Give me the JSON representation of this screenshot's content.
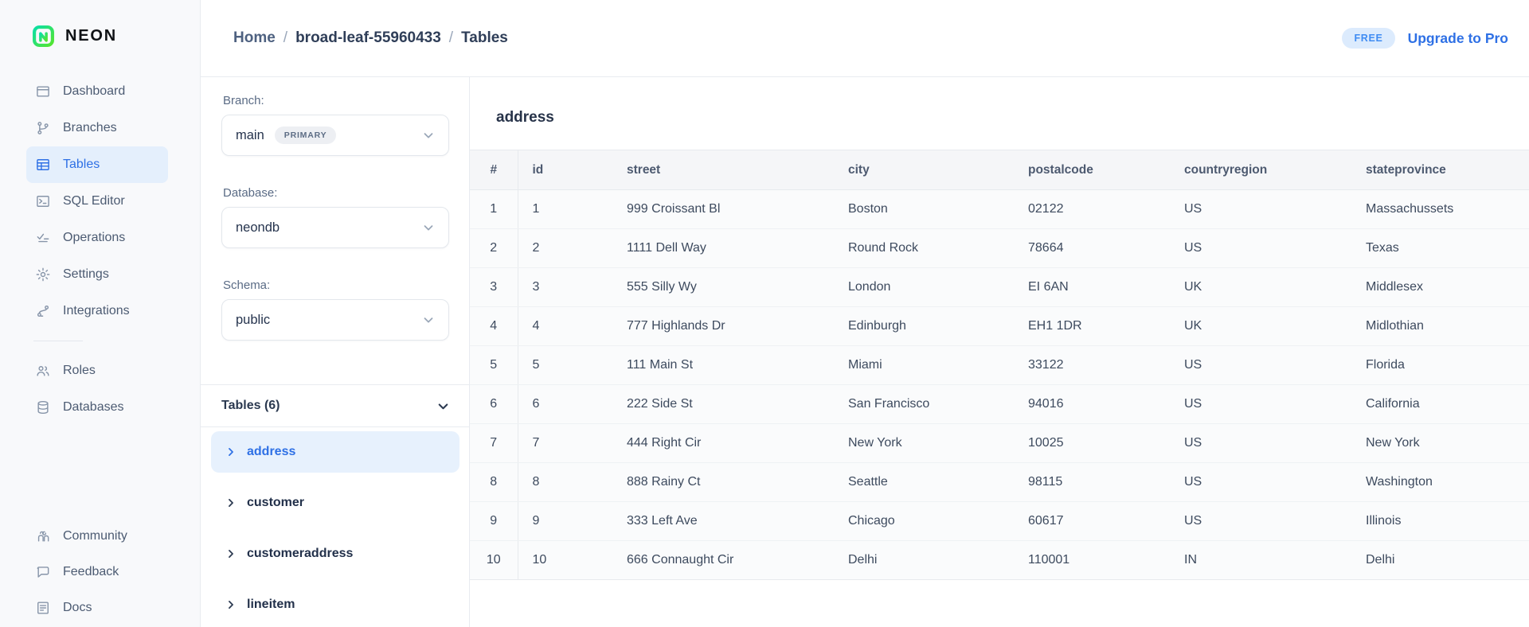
{
  "brand": {
    "name": "NEON"
  },
  "sidebar": {
    "items": [
      {
        "label": "Dashboard",
        "icon": "dashboard",
        "selected": false
      },
      {
        "label": "Branches",
        "icon": "branches",
        "selected": false
      },
      {
        "label": "Tables",
        "icon": "tables",
        "selected": true
      },
      {
        "label": "SQL Editor",
        "icon": "sql-editor",
        "selected": false
      },
      {
        "label": "Operations",
        "icon": "operations",
        "selected": false
      },
      {
        "label": "Settings",
        "icon": "settings",
        "selected": false
      },
      {
        "label": "Integrations",
        "icon": "integrations",
        "selected": false
      }
    ],
    "secondary_items": [
      {
        "label": "Roles",
        "icon": "roles",
        "selected": false
      },
      {
        "label": "Databases",
        "icon": "databases",
        "selected": false
      }
    ],
    "footer_items": [
      {
        "label": "Community",
        "icon": "community",
        "selected": false
      },
      {
        "label": "Feedback",
        "icon": "feedback",
        "selected": false
      },
      {
        "label": "Docs",
        "icon": "docs",
        "selected": false
      }
    ]
  },
  "header": {
    "breadcrumb": {
      "home": "Home",
      "project": "broad-leaf-55960433",
      "section": "Tables",
      "separator": "/"
    },
    "plan_badge": "FREE",
    "upgrade_label": "Upgrade to Pro"
  },
  "panel": {
    "branch_label": "Branch:",
    "branch_value": "main",
    "branch_badge": "PRIMARY",
    "database_label": "Database:",
    "database_value": "neondb",
    "schema_label": "Schema:",
    "schema_value": "public",
    "tables_header": "Tables (6)",
    "tables": [
      {
        "name": "address",
        "selected": true
      },
      {
        "name": "customer",
        "selected": false
      },
      {
        "name": "customeraddress",
        "selected": false
      },
      {
        "name": "lineitem",
        "selected": false
      }
    ]
  },
  "main": {
    "title": "address",
    "table": {
      "columns": [
        "#",
        "id",
        "street",
        "city",
        "postalcode",
        "countryregion",
        "stateprovince"
      ],
      "rows": [
        [
          "1",
          "1",
          "999 Croissant Bl",
          "Boston",
          "02122",
          "US",
          "Massachussets"
        ],
        [
          "2",
          "2",
          "1111 Dell Way",
          "Round Rock",
          "78664",
          "US",
          "Texas"
        ],
        [
          "3",
          "3",
          "555 Silly Wy",
          "London",
          "EI 6AN",
          "UK",
          "Middlesex"
        ],
        [
          "4",
          "4",
          "777 Highlands Dr",
          "Edinburgh",
          "EH1 1DR",
          "UK",
          "Midlothian"
        ],
        [
          "5",
          "5",
          "111 Main St",
          "Miami",
          "33122",
          "US",
          "Florida"
        ],
        [
          "6",
          "6",
          "222 Side St",
          "San Francisco",
          "94016",
          "US",
          "California"
        ],
        [
          "7",
          "7",
          "444 Right Cir",
          "New York",
          "10025",
          "US",
          "New York"
        ],
        [
          "8",
          "8",
          "888 Rainy Ct",
          "Seattle",
          "98115",
          "US",
          "Washington"
        ],
        [
          "9",
          "9",
          "333 Left Ave",
          "Chicago",
          "60617",
          "US",
          "Illinois"
        ],
        [
          "10",
          "10",
          "666 Connaught Cir",
          "Delhi",
          "110001",
          "IN",
          "Delhi"
        ]
      ]
    }
  },
  "colors": {
    "accent_blue": "#2e70e5",
    "selected_bg": "#e7f1fd",
    "sidebar_bg": "#f8f9fb",
    "logo_gradient_start": "#0adfa6",
    "logo_gradient_end": "#55e52d",
    "free_badge_bg": "#dcebfd",
    "free_badge_text": "#3f8cf3",
    "table_header_bg": "#f5f6f8",
    "row_bg": "#fafbfc"
  }
}
